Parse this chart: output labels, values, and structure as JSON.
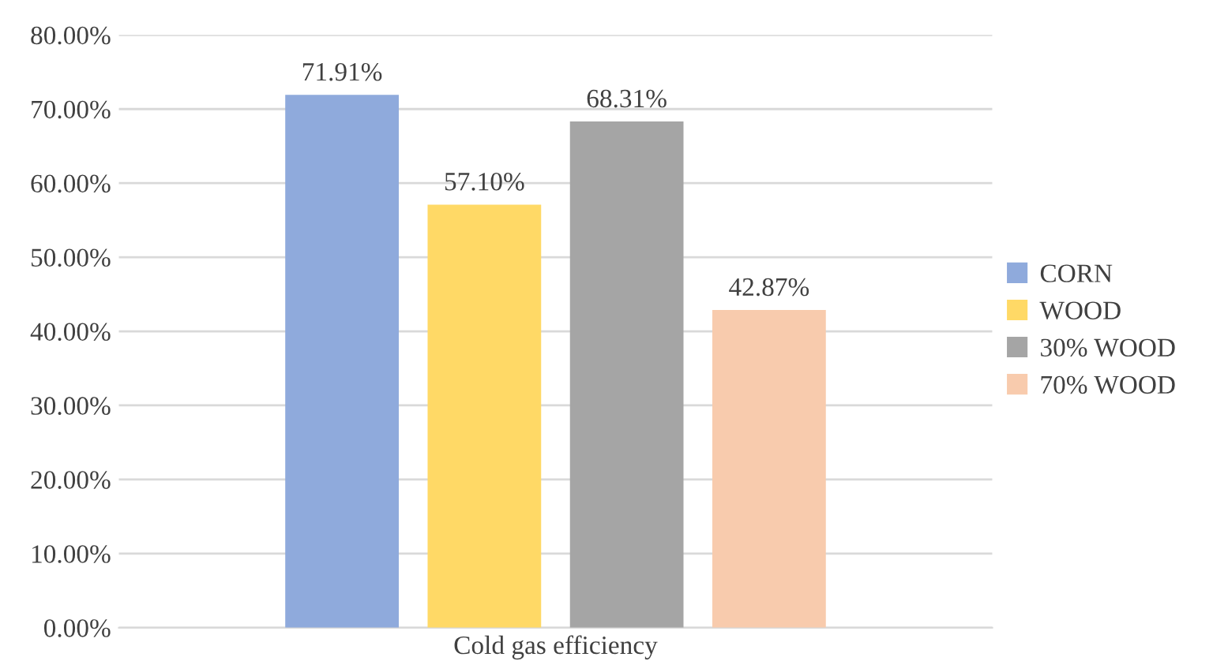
{
  "chart_data": {
    "type": "bar",
    "categories": [
      "Cold gas efficiency"
    ],
    "series": [
      {
        "name": "CORN",
        "color": "#8faadc",
        "values": [
          71.91
        ],
        "value_labels": [
          "71.91%"
        ]
      },
      {
        "name": "WOOD",
        "color": "#ffd966",
        "values": [
          57.1
        ],
        "value_labels": [
          "57.10%"
        ]
      },
      {
        "name": "30% WOOD",
        "color": "#a5a5a5",
        "values": [
          68.31
        ],
        "value_labels": [
          "68.31%"
        ]
      },
      {
        "name": "70% WOOD",
        "color": "#f8cbad",
        "values": [
          42.87
        ],
        "value_labels": [
          "42.87%"
        ]
      }
    ],
    "ylim": [
      0,
      80
    ],
    "yticks": [
      {
        "value": 0,
        "label": "0.00%"
      },
      {
        "value": 10,
        "label": "10.00%"
      },
      {
        "value": 20,
        "label": "20.00%"
      },
      {
        "value": 30,
        "label": "30.00%"
      },
      {
        "value": 40,
        "label": "40.00%"
      },
      {
        "value": 50,
        "label": "50.00%"
      },
      {
        "value": 60,
        "label": "60.00%"
      },
      {
        "value": 70,
        "label": "70.00%"
      },
      {
        "value": 80,
        "label": "80.00%"
      }
    ],
    "grid": "y",
    "legend": "right"
  }
}
